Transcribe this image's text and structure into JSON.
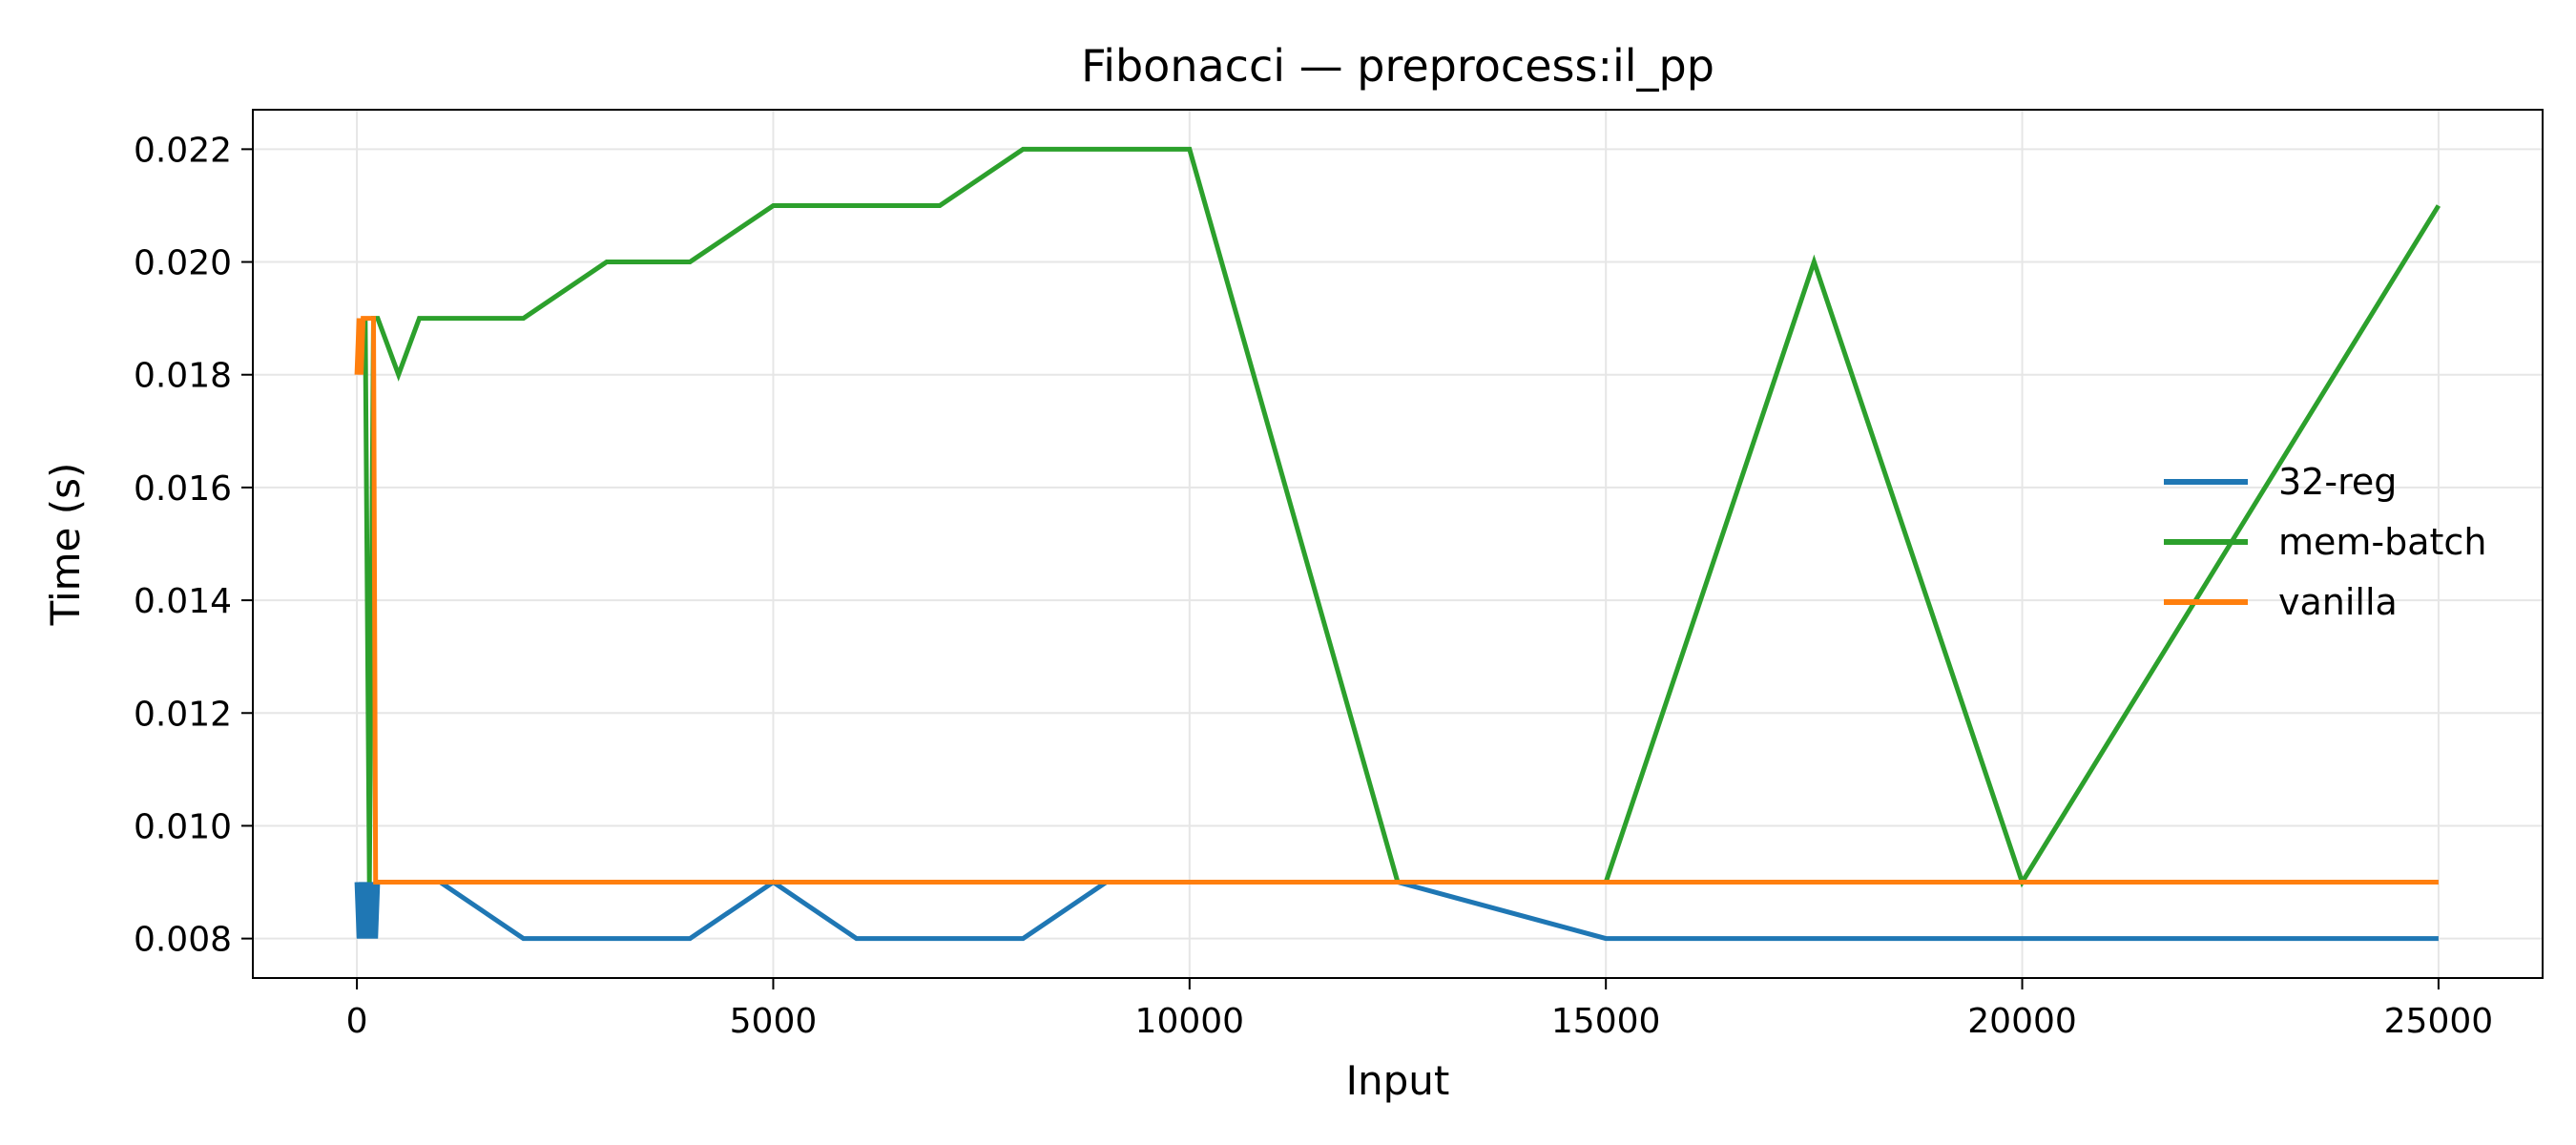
{
  "chart_data": {
    "type": "line",
    "title": "Fibonacci — preprocess:il_pp",
    "xlabel": "Input",
    "ylabel": "Time (s)",
    "xlim": [
      -1250,
      26250
    ],
    "ylim": [
      0.0073,
      0.0227
    ],
    "xticks": [
      0,
      5000,
      10000,
      15000,
      20000,
      25000
    ],
    "xtick_labels": [
      "0",
      "5000",
      "10000",
      "15000",
      "20000",
      "25000"
    ],
    "yticks": [
      0.008,
      0.01,
      0.012,
      0.014,
      0.016,
      0.018,
      0.02,
      0.022
    ],
    "ytick_labels": [
      "0.008",
      "0.010",
      "0.012",
      "0.014",
      "0.016",
      "0.018",
      "0.020",
      "0.022"
    ],
    "grid": true,
    "legend_position": "center-right",
    "series": [
      {
        "name": "32-reg",
        "color": "#1f77b4",
        "x": [
          0,
          25,
          50,
          75,
          100,
          125,
          150,
          175,
          200,
          225,
          250,
          500,
          750,
          1000,
          2000,
          3000,
          4000,
          5000,
          6000,
          7000,
          8000,
          9000,
          10000,
          12500,
          15000,
          17500,
          20000,
          22500,
          25000
        ],
        "y": [
          0.009,
          0.008,
          0.009,
          0.008,
          0.009,
          0.008,
          0.009,
          0.008,
          0.009,
          0.008,
          0.009,
          0.009,
          0.009,
          0.009,
          0.008,
          0.008,
          0.008,
          0.009,
          0.008,
          0.008,
          0.008,
          0.009,
          0.009,
          0.009,
          0.008,
          0.008,
          0.008,
          0.008,
          0.008
        ]
      },
      {
        "name": "mem-batch",
        "color": "#2ca02c",
        "x": [
          100,
          150,
          200,
          250,
          500,
          750,
          1000,
          2000,
          3000,
          4000,
          5000,
          6000,
          7000,
          8000,
          9000,
          10000,
          12500,
          15000,
          17500,
          20000,
          22500,
          25000
        ],
        "y": [
          0.019,
          0.009,
          0.019,
          0.019,
          0.018,
          0.019,
          0.019,
          0.019,
          0.02,
          0.02,
          0.021,
          0.021,
          0.021,
          0.022,
          0.022,
          0.022,
          0.009,
          0.009,
          0.02,
          0.009,
          0.015,
          0.021
        ]
      },
      {
        "name": "vanilla",
        "color": "#ff7f0e",
        "x": [
          0,
          25,
          50,
          75,
          100,
          125,
          150,
          175,
          200,
          225,
          250,
          500,
          1000,
          5000,
          10000,
          15000,
          20000,
          25000
        ],
        "y": [
          0.018,
          0.019,
          0.018,
          0.019,
          0.019,
          0.019,
          0.019,
          0.019,
          0.019,
          0.009,
          0.009,
          0.009,
          0.009,
          0.009,
          0.009,
          0.009,
          0.009,
          0.009
        ]
      }
    ]
  }
}
